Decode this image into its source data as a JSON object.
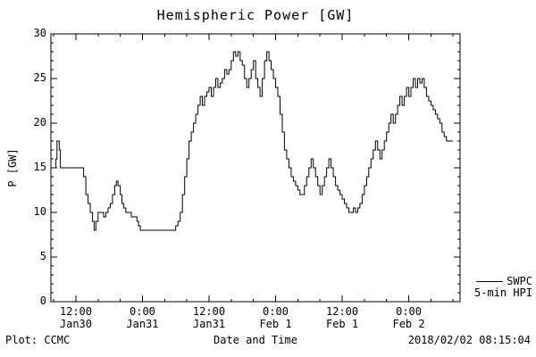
{
  "chart_data": {
    "type": "line",
    "title": "Hemispheric Power [GW]",
    "xlabel": "Date and Time",
    "ylabel": "P [GW]",
    "ylim": [
      0,
      30
    ],
    "yticks": [
      0,
      5,
      10,
      15,
      20,
      25,
      30
    ],
    "ytick_labels": [
      "0",
      "5",
      "10",
      "15",
      "20",
      "25",
      "30"
    ],
    "xlim_hours": [
      7.5,
      81.25
    ],
    "xticks_hours": [
      12,
      24,
      36,
      48,
      60,
      72
    ],
    "xtick_labels": [
      {
        "time": "12:00",
        "date": "Jan30"
      },
      {
        "time": "0:00",
        "date": "Jan31"
      },
      {
        "time": "12:00",
        "date": "Jan31"
      },
      {
        "time": "0:00",
        "date": "Feb 1"
      },
      {
        "time": "12:00",
        "date": "Feb 1"
      },
      {
        "time": "0:00",
        "date": "Feb 2"
      }
    ],
    "grid": false,
    "line_color": "#000000",
    "legend": {
      "line1": "SWPC",
      "line2": "5-min HPI",
      "position": "right-bottom-outside"
    },
    "series": [
      {
        "name": "SWPC 5-min HPI",
        "x_unit": "hours since 2018-01-30 00:00",
        "y_unit": "GW",
        "points": [
          [
            7.5,
            15
          ],
          [
            8.2,
            15
          ],
          [
            8.4,
            16
          ],
          [
            8.6,
            18
          ],
          [
            9.0,
            17
          ],
          [
            9.2,
            15
          ],
          [
            13.0,
            15
          ],
          [
            13.4,
            14
          ],
          [
            13.8,
            12
          ],
          [
            14.2,
            11
          ],
          [
            14.6,
            10
          ],
          [
            15.0,
            9
          ],
          [
            15.3,
            8
          ],
          [
            15.6,
            9
          ],
          [
            16.0,
            10
          ],
          [
            16.5,
            10
          ],
          [
            17.0,
            9.5
          ],
          [
            17.4,
            10
          ],
          [
            17.8,
            10.5
          ],
          [
            18.2,
            11
          ],
          [
            18.6,
            12
          ],
          [
            19.0,
            13
          ],
          [
            19.3,
            13.5
          ],
          [
            19.6,
            13
          ],
          [
            20.0,
            12
          ],
          [
            20.3,
            11
          ],
          [
            20.6,
            10.5
          ],
          [
            21.0,
            10
          ],
          [
            21.5,
            10
          ],
          [
            22.0,
            9.5
          ],
          [
            22.5,
            9.5
          ],
          [
            23.0,
            9
          ],
          [
            23.3,
            8.5
          ],
          [
            23.6,
            8
          ],
          [
            29.5,
            8
          ],
          [
            30.0,
            8.5
          ],
          [
            30.4,
            9
          ],
          [
            30.8,
            10
          ],
          [
            31.2,
            12
          ],
          [
            31.6,
            14
          ],
          [
            32.0,
            16
          ],
          [
            32.4,
            18
          ],
          [
            32.8,
            19
          ],
          [
            33.2,
            20
          ],
          [
            33.6,
            21
          ],
          [
            34.0,
            22
          ],
          [
            34.4,
            23
          ],
          [
            34.8,
            22
          ],
          [
            35.2,
            23
          ],
          [
            35.6,
            23.5
          ],
          [
            36.0,
            24
          ],
          [
            36.4,
            23
          ],
          [
            36.8,
            24
          ],
          [
            37.2,
            25
          ],
          [
            37.6,
            24
          ],
          [
            38.0,
            24.5
          ],
          [
            38.4,
            25
          ],
          [
            38.8,
            26
          ],
          [
            39.2,
            25.5
          ],
          [
            39.6,
            26
          ],
          [
            40.0,
            27
          ],
          [
            40.4,
            28
          ],
          [
            40.8,
            27.5
          ],
          [
            41.2,
            28
          ],
          [
            41.6,
            27
          ],
          [
            42.0,
            26.5
          ],
          [
            42.4,
            25
          ],
          [
            42.8,
            24
          ],
          [
            43.2,
            25
          ],
          [
            43.6,
            26
          ],
          [
            44.0,
            27
          ],
          [
            44.4,
            25
          ],
          [
            44.8,
            24
          ],
          [
            45.2,
            23
          ],
          [
            45.6,
            25
          ],
          [
            46.0,
            27
          ],
          [
            46.4,
            28
          ],
          [
            46.8,
            27
          ],
          [
            47.2,
            26
          ],
          [
            47.6,
            25
          ],
          [
            48.0,
            24
          ],
          [
            48.4,
            23
          ],
          [
            48.8,
            21
          ],
          [
            49.2,
            19
          ],
          [
            49.6,
            17
          ],
          [
            50.0,
            16
          ],
          [
            50.4,
            15
          ],
          [
            50.8,
            14
          ],
          [
            51.2,
            13.5
          ],
          [
            51.6,
            13
          ],
          [
            52.0,
            12.5
          ],
          [
            52.4,
            12
          ],
          [
            52.8,
            12
          ],
          [
            53.2,
            13
          ],
          [
            53.6,
            14
          ],
          [
            54.0,
            15
          ],
          [
            54.4,
            16
          ],
          [
            54.8,
            15
          ],
          [
            55.2,
            14
          ],
          [
            55.6,
            13
          ],
          [
            56.0,
            12
          ],
          [
            56.4,
            13
          ],
          [
            56.8,
            14
          ],
          [
            57.2,
            15
          ],
          [
            57.6,
            16
          ],
          [
            58.0,
            15
          ],
          [
            58.4,
            14
          ],
          [
            58.8,
            13
          ],
          [
            59.2,
            12.5
          ],
          [
            59.6,
            12
          ],
          [
            60.0,
            11.5
          ],
          [
            60.4,
            11
          ],
          [
            60.8,
            10.5
          ],
          [
            61.2,
            10
          ],
          [
            61.6,
            10
          ],
          [
            62.0,
            10.5
          ],
          [
            62.4,
            10
          ],
          [
            62.8,
            10.5
          ],
          [
            63.2,
            11
          ],
          [
            63.6,
            12
          ],
          [
            64.0,
            13
          ],
          [
            64.4,
            14
          ],
          [
            64.8,
            15
          ],
          [
            65.2,
            16
          ],
          [
            65.6,
            17
          ],
          [
            66.0,
            18
          ],
          [
            66.4,
            17
          ],
          [
            66.8,
            16
          ],
          [
            67.2,
            17
          ],
          [
            67.6,
            18
          ],
          [
            68.0,
            19
          ],
          [
            68.4,
            20
          ],
          [
            68.8,
            21
          ],
          [
            69.2,
            20
          ],
          [
            69.6,
            21
          ],
          [
            70.0,
            22
          ],
          [
            70.4,
            23
          ],
          [
            70.8,
            22
          ],
          [
            71.2,
            23
          ],
          [
            71.6,
            24
          ],
          [
            72.0,
            23
          ],
          [
            72.4,
            24
          ],
          [
            72.8,
            25
          ],
          [
            73.2,
            24
          ],
          [
            73.6,
            25
          ],
          [
            74.0,
            24.5
          ],
          [
            74.4,
            25
          ],
          [
            74.8,
            24
          ],
          [
            75.2,
            23
          ],
          [
            75.6,
            22.5
          ],
          [
            76.0,
            22
          ],
          [
            76.4,
            21.5
          ],
          [
            76.8,
            21
          ],
          [
            77.2,
            20.5
          ],
          [
            77.6,
            20
          ],
          [
            78.0,
            19
          ],
          [
            78.4,
            18.5
          ],
          [
            78.8,
            18
          ],
          [
            80.0,
            18
          ]
        ]
      }
    ]
  },
  "footer": {
    "left": "Plot: CCMC",
    "right": "2018/02/02 08:15:04"
  }
}
